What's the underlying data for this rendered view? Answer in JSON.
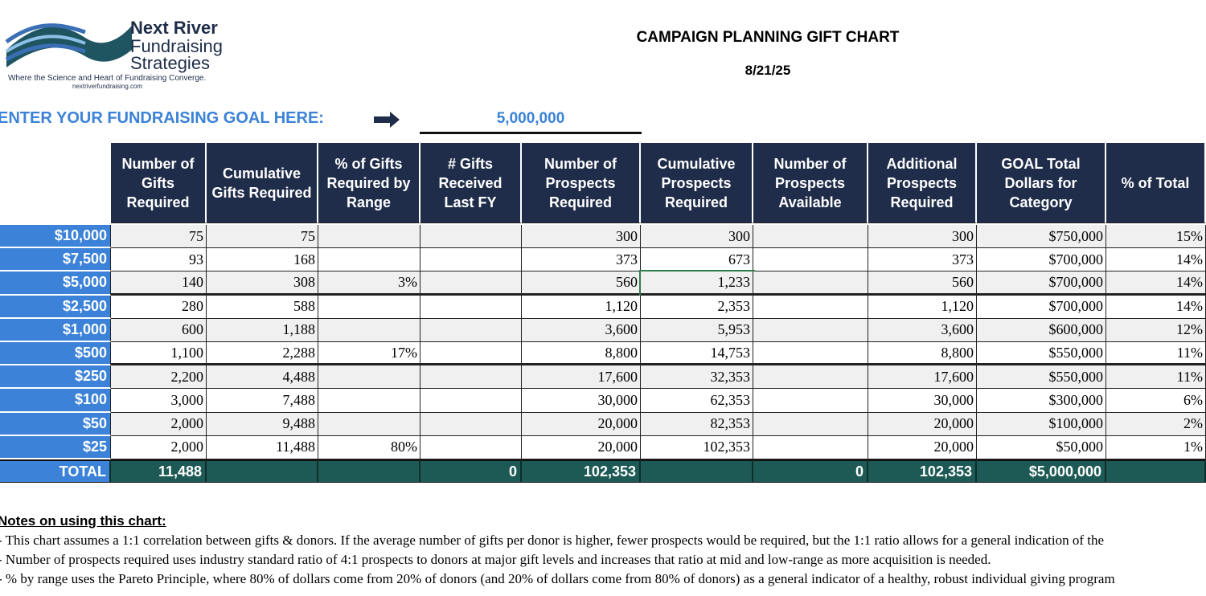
{
  "logo": {
    "name": "Next River",
    "line2": "Fundraising",
    "line3": "Strategies",
    "tagline": "Where the Science and Heart of Fundraising Converge.",
    "url": "nextriverfundraising.com"
  },
  "header": {
    "title": "CAMPAIGN PLANNING GIFT CHART",
    "date": "8/21/25"
  },
  "goal": {
    "label": "ENTER YOUR FUNDRAISING GOAL HERE:",
    "value": "5,000,000"
  },
  "table": {
    "columns": [
      null,
      "Number of Gifts Required",
      "Cumulative Gifts Required",
      "% of Gifts Required by Range",
      "# Gifts Received Last FY",
      "Number of Prospects Required",
      "Cumulative Prospects Required",
      "Number of Prospects Available",
      "Additional Prospects Required",
      "GOAL Total Dollars for Category",
      "% of Total"
    ],
    "rows": [
      [
        "$10,000",
        "75",
        "75",
        null,
        null,
        "300",
        "300",
        null,
        "300",
        "$750,000",
        "15%"
      ],
      [
        "$7,500",
        "93",
        "168",
        null,
        null,
        "373",
        "673",
        null,
        "373",
        "$700,000",
        "14%"
      ],
      [
        "$5,000",
        "140",
        "308",
        "3%",
        null,
        "560",
        "1,233",
        null,
        "560",
        "$700,000",
        "14%"
      ],
      [
        "$2,500",
        "280",
        "588",
        null,
        null,
        "1,120",
        "2,353",
        null,
        "1,120",
        "$700,000",
        "14%"
      ],
      [
        "$1,000",
        "600",
        "1,188",
        null,
        null,
        "3,600",
        "5,953",
        null,
        "3,600",
        "$600,000",
        "12%"
      ],
      [
        "$500",
        "1,100",
        "2,288",
        "17%",
        null,
        "8,800",
        "14,753",
        null,
        "8,800",
        "$550,000",
        "11%"
      ],
      [
        "$250",
        "2,200",
        "4,488",
        null,
        null,
        "17,600",
        "32,353",
        null,
        "17,600",
        "$550,000",
        "11%"
      ],
      [
        "$100",
        "3,000",
        "7,488",
        null,
        null,
        "30,000",
        "62,353",
        null,
        "30,000",
        "$300,000",
        "6%"
      ],
      [
        "$50",
        "2,000",
        "9,488",
        null,
        null,
        "20,000",
        "82,353",
        null,
        "20,000",
        "$100,000",
        "2%"
      ],
      [
        "$25",
        "2,000",
        "11,488",
        "80%",
        null,
        "20,000",
        "102,353",
        null,
        "20,000",
        "$50,000",
        "1%"
      ]
    ],
    "total": [
      "TOTAL",
      "11,488",
      null,
      null,
      "0",
      "102,353",
      null,
      "0",
      "102,353",
      "$5,000,000",
      null
    ]
  },
  "notes": {
    "heading": "Notes on using this chart:",
    "lines": [
      "- This chart assumes a 1:1 correlation between gifts & donors.  If the average number of gifts per donor is higher, fewer prospects would be required, but the 1:1 ratio allows for a general indication of the",
      "- Number of prospects required uses industry standard ratio of 4:1 prospects to donors at major gift levels and increases that ratio at mid and low-range as more acquisition is needed.",
      "- % by range uses the Pareto Principle, where 80% of dollars come from 20% of donors (and 20% of dollars come from 80% of donors) as a general indicator of a healthy, robust individual giving program"
    ]
  }
}
